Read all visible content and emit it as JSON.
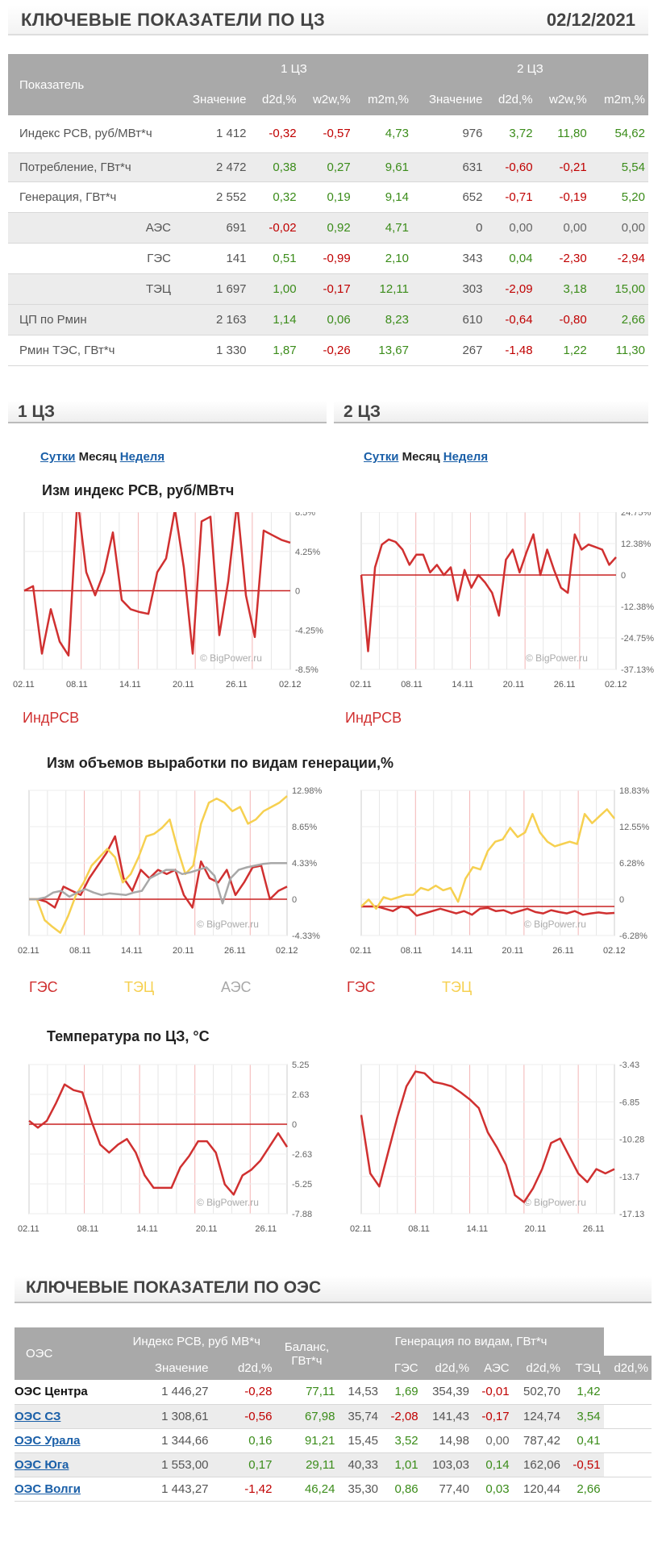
{
  "header": {
    "title": "КЛЮЧЕВЫЕ ПОКАЗАТЕЛИ ПО ЦЗ",
    "date": "02/12/2021"
  },
  "kp_table": {
    "col_label": "Показатель",
    "zone1": "1 ЦЗ",
    "zone2": "2 ЦЗ",
    "sub": [
      "Значение",
      "d2d,%",
      "w2w,%",
      "m2m,%",
      "Значение",
      "d2d,%",
      "w2w,%",
      "m2m,%"
    ],
    "rows": [
      {
        "label": "Индекс РСВ, руб/МВт*ч",
        "indent": false,
        "shade": false,
        "vals": [
          "1 412",
          "-0,32",
          "-0,57",
          "4,73",
          "976",
          "3,72",
          "11,80",
          "54,62"
        ]
      },
      {
        "label": "Потребление, ГВт*ч",
        "indent": false,
        "shade": true,
        "vals": [
          "2 472",
          "0,38",
          "0,27",
          "9,61",
          "631",
          "-0,60",
          "-0,21",
          "5,54"
        ]
      },
      {
        "label": "Генерация, ГВт*ч",
        "indent": false,
        "shade": false,
        "vals": [
          "2 552",
          "0,32",
          "0,19",
          "9,14",
          "652",
          "-0,71",
          "-0,19",
          "5,20"
        ]
      },
      {
        "label": "АЭС",
        "indent": true,
        "shade": true,
        "vals": [
          "691",
          "-0,02",
          "0,92",
          "4,71",
          "0",
          "0,00",
          "0,00",
          "0,00"
        ]
      },
      {
        "label": "ГЭС",
        "indent": true,
        "shade": false,
        "vals": [
          "141",
          "0,51",
          "-0,99",
          "2,10",
          "343",
          "0,04",
          "-2,30",
          "-2,94"
        ]
      },
      {
        "label": "ТЭЦ",
        "indent": true,
        "shade": true,
        "vals": [
          "1 697",
          "1,00",
          "-0,17",
          "12,11",
          "303",
          "-2,09",
          "3,18",
          "15,00"
        ]
      },
      {
        "label": "ЦП по Рмин",
        "indent": false,
        "shade": true,
        "vals": [
          "2 163",
          "1,14",
          "0,06",
          "8,23",
          "610",
          "-0,64",
          "-0,80",
          "2,66"
        ]
      },
      {
        "label": "Рмин ТЭС, ГВт*ч",
        "indent": false,
        "shade": false,
        "vals": [
          "1 330",
          "1,87",
          "-0,26",
          "13,67",
          "267",
          "-1,48",
          "1,22",
          "11,30"
        ]
      }
    ]
  },
  "zones": {
    "z1": "1 ЦЗ",
    "z2": "2 ЦЗ"
  },
  "tabs": {
    "day": "Сутки",
    "month": "Месяц",
    "week": "Неделя"
  },
  "chart_titles": {
    "price": "Изм индекс РСВ, руб/МВтч",
    "gen": "Изм объемов выработки по видам генерации,%",
    "temp": "Температура по ЦЗ, °С"
  },
  "watermark": "© BigPower.ru",
  "colors": {
    "red": "#d03030",
    "yellow": "#f6d050",
    "grey": "#a8a8a8"
  },
  "chart_data": [
    {
      "id": "price1",
      "type": "line",
      "title": "Изм индекс РСВ, руб/МВтч",
      "ylim": [
        -8.5,
        8.5
      ],
      "yticks": [
        "8.5%",
        "4.25%",
        "0",
        "-4.25%",
        "-8.5%"
      ],
      "xticks": [
        "02.11",
        "08.11",
        "14.11",
        "20.11",
        "26.11",
        "02.12"
      ],
      "series": [
        {
          "name": "ИндРСВ",
          "color": "#d03030",
          "values": [
            0,
            0.5,
            -6.8,
            -2,
            -5.5,
            -7,
            10,
            2,
            -0.5,
            2,
            6.3,
            -1,
            -2,
            -2.3,
            -2.5,
            2,
            3.5,
            8.8,
            2.5,
            -6.8,
            7.5,
            8,
            -4.8,
            1,
            9.5,
            -0.5,
            -5,
            6.5,
            6,
            5.5,
            5.2
          ]
        }
      ]
    },
    {
      "id": "price2",
      "type": "line",
      "title": "Изм индекс РСВ, руб/МВтч",
      "ylim": [
        -37.13,
        24.75
      ],
      "yticks": [
        "24.75%",
        "12.38%",
        "0",
        "-12.38%",
        "-24.75%",
        "-37.13%"
      ],
      "xticks": [
        "02.11",
        "08.11",
        "14.11",
        "20.11",
        "26.11",
        "02.12"
      ],
      "series": [
        {
          "name": "ИндРСВ",
          "color": "#d03030",
          "values": [
            0,
            -30,
            3,
            12,
            14,
            13,
            10,
            4,
            8,
            8,
            1,
            4,
            0,
            3,
            -10,
            2,
            -5,
            0,
            -3,
            -7,
            -16,
            6,
            10,
            1,
            9,
            16,
            0,
            10,
            2,
            -5,
            -7,
            16,
            10,
            12,
            11,
            10,
            4,
            7
          ]
        }
      ]
    },
    {
      "id": "gen1",
      "type": "line",
      "title": "Изм объемов выработки по видам генерации,%",
      "ylim": [
        -4.33,
        12.98
      ],
      "yticks": [
        "12.98%",
        "8.65%",
        "4.33%",
        "0",
        "-4.33%"
      ],
      "xticks": [
        "02.11",
        "08.11",
        "14.11",
        "20.11",
        "26.11",
        "02.12"
      ],
      "series": [
        {
          "name": "ГЭС",
          "color": "#d03030",
          "values": [
            0,
            0,
            -0.3,
            -1,
            1.5,
            1,
            0.5,
            2.5,
            4,
            5.5,
            7.5,
            2.5,
            1,
            3.5,
            2.5,
            3.5,
            3,
            3.5,
            0.5,
            -1,
            4.5,
            2.5,
            2,
            3.5,
            0.5,
            2,
            3.8,
            4,
            0,
            1,
            1.5
          ]
        },
        {
          "name": "ТЭЦ",
          "color": "#f6d050",
          "values": [
            0,
            0,
            -2.5,
            -3.3,
            -4,
            -2,
            0.5,
            2,
            4,
            5,
            6,
            5,
            2,
            3,
            5,
            7.5,
            7.8,
            8.5,
            9.5,
            6,
            3,
            4,
            9,
            11.5,
            12,
            11.5,
            10.5,
            11,
            9,
            9.5,
            10.5,
            11,
            11.5,
            12.3
          ]
        },
        {
          "name": "АЭС",
          "color": "#a8a8a8",
          "values": [
            0,
            0,
            0.2,
            0.8,
            1,
            0.3,
            0.8,
            1.2,
            0.8,
            0.5,
            0.7,
            0.6,
            0.5,
            0.8,
            1,
            2.5,
            3,
            3.5,
            3.5,
            3,
            3.2,
            3.5,
            3.8,
            2.8,
            -0.5,
            2.5,
            3.5,
            3.8,
            4,
            4.2,
            4.3,
            4.3,
            4.3
          ]
        }
      ]
    },
    {
      "id": "gen2",
      "type": "line",
      "title": "Изм объемов выработки по видам генерации,%",
      "ylim": [
        -6.28,
        25.1
      ],
      "yticks": [
        "18.83%",
        "12.55%",
        "6.28%",
        "0",
        "-6.28%"
      ],
      "xticks": [
        "02.11",
        "08.11",
        "14.11",
        "20.11",
        "26.11",
        "02.12"
      ],
      "series": [
        {
          "name": "ГЭС",
          "color": "#d03030",
          "values": [
            0,
            0,
            0,
            -0.5,
            -1,
            0,
            -0.3,
            -2,
            -1.5,
            -1,
            -0.5,
            -1,
            -1.5,
            -1,
            -1.8,
            -0.5,
            -0.3,
            -1,
            -0.8,
            -1.5,
            -1,
            -0.5,
            -1.2,
            -1.5,
            -0.8,
            -1.2,
            -1.5,
            -1,
            -1.8,
            -1.5,
            -1.3,
            -1.5,
            -1.4
          ]
        },
        {
          "name": "ТЭЦ",
          "color": "#f6d050",
          "values": [
            0,
            1.5,
            -0.5,
            2,
            1.5,
            2,
            2.5,
            2.5,
            4,
            3.5,
            4.5,
            3.5,
            4,
            1,
            6,
            8.5,
            8,
            12,
            14,
            14.5,
            17,
            15,
            16,
            20,
            16,
            14,
            13,
            13.5,
            14,
            13.5,
            20,
            18,
            19.5,
            21,
            19
          ]
        }
      ]
    },
    {
      "id": "temp1",
      "type": "line",
      "title": "Температура по ЦЗ, °С",
      "ylim": [
        -7.88,
        5.25
      ],
      "yticks": [
        "5.25",
        "2.63",
        "0",
        "-2.63",
        "-5.25",
        "-7.88"
      ],
      "xticks": [
        "02.11",
        "08.11",
        "14.11",
        "20.11",
        "26.11"
      ],
      "series": [
        {
          "name": "",
          "color": "#d03030",
          "values": [
            0.3,
            -0.3,
            0.3,
            1.8,
            3.5,
            3,
            2.8,
            0.3,
            -1.8,
            -2.5,
            -1.8,
            -1.3,
            -2.5,
            -4.5,
            -5.6,
            -5.6,
            -5.6,
            -3.8,
            -2.8,
            -1.5,
            -1.5,
            -2.5,
            -5.3,
            -6.2,
            -4.5,
            -4,
            -3.2,
            -2,
            -0.8,
            -2
          ]
        }
      ]
    },
    {
      "id": "temp2",
      "type": "line",
      "title": "Температура по ЦЗ, °С",
      "ylim": [
        -17.13,
        0
      ],
      "yticks": [
        "-3.43",
        "-6.85",
        "-10.28",
        "-13.7",
        "-17.13"
      ],
      "xticks": [
        "02.11",
        "08.11",
        "14.11",
        "20.11",
        "26.11"
      ],
      "series": [
        {
          "name": "",
          "color": "#d03030",
          "values": [
            -5.8,
            -12.5,
            -14,
            -10,
            -6,
            -2.5,
            -0.8,
            -1,
            -2,
            -2.2,
            -2.5,
            -3.2,
            -4,
            -5,
            -7.8,
            -9.5,
            -11.5,
            -15,
            -15.8,
            -14.2,
            -12,
            -9,
            -8.5,
            -10.5,
            -12.5,
            -13.5,
            -12,
            -12.5,
            -12
          ]
        }
      ]
    }
  ],
  "oes": {
    "title": "КЛЮЧЕВЫЕ ПОКАЗАТЕЛИ ПО ОЭС",
    "h_oes": "ОЭС",
    "h_price": "Индекс РСВ, руб МВ*ч",
    "h_balance": "Баланс, ГВт*ч",
    "h_gen": "Генерация по видам, ГВт*ч",
    "sub": [
      "Значение",
      "d2d,%",
      "ГЭС",
      "d2d,%",
      "АЭС",
      "d2d,%",
      "ТЭЦ",
      "d2d,%"
    ],
    "rows": [
      {
        "name": "ОЭС Центра",
        "link": false,
        "vals": [
          "1 446,27",
          "-0,28",
          "77,11",
          "14,53",
          "1,69",
          "354,39",
          "-0,01",
          "502,70",
          "1,42"
        ]
      },
      {
        "name": "ОЭС СЗ",
        "link": true,
        "vals": [
          "1 308,61",
          "-0,56",
          "67,98",
          "35,74",
          "-2,08",
          "141,43",
          "-0,17",
          "124,74",
          "3,54"
        ]
      },
      {
        "name": "ОЭС Урала",
        "link": true,
        "vals": [
          "1 344,66",
          "0,16",
          "91,21",
          "15,45",
          "3,52",
          "14,98",
          "0,00",
          "787,42",
          "0,41"
        ]
      },
      {
        "name": "ОЭС Юга",
        "link": true,
        "vals": [
          "1 553,00",
          "0,17",
          "29,11",
          "40,33",
          "1,01",
          "103,03",
          "0,14",
          "162,06",
          "-0,51"
        ]
      },
      {
        "name": "ОЭС Волги",
        "link": true,
        "vals": [
          "1 443,27",
          "-1,42",
          "46,24",
          "35,30",
          "0,86",
          "77,40",
          "0,03",
          "120,44",
          "2,66"
        ]
      }
    ]
  }
}
